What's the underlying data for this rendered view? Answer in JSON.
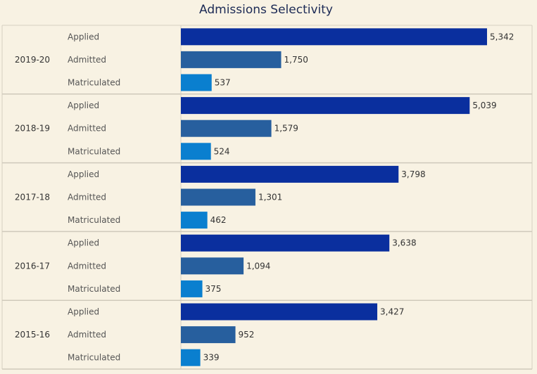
{
  "chart_data": {
    "type": "bar",
    "orientation": "horizontal",
    "title": "Admissions Selectivity",
    "series_names": [
      "Applied",
      "Admitted",
      "Matriculated"
    ],
    "colors": {
      "Applied": "#0a2f9e",
      "Admitted": "#275f9e",
      "Matriculated": "#0a7fcf"
    },
    "xlim": [
      0,
      5342
    ],
    "groups": [
      {
        "year": "2019-20",
        "values": [
          5342,
          1750,
          537
        ],
        "labels": [
          "5,342",
          "1,750",
          "537"
        ]
      },
      {
        "year": "2018-19",
        "values": [
          5039,
          1579,
          524
        ],
        "labels": [
          "5,039",
          "1,579",
          "524"
        ]
      },
      {
        "year": "2017-18",
        "values": [
          3798,
          1301,
          462
        ],
        "labels": [
          "3,798",
          "1,301",
          "462"
        ]
      },
      {
        "year": "2016-17",
        "values": [
          3638,
          1094,
          375
        ],
        "labels": [
          "3,638",
          "1,094",
          "375"
        ]
      },
      {
        "year": "2015-16",
        "values": [
          3427,
          952,
          339
        ],
        "labels": [
          "3,427",
          "952",
          "339"
        ]
      }
    ]
  }
}
